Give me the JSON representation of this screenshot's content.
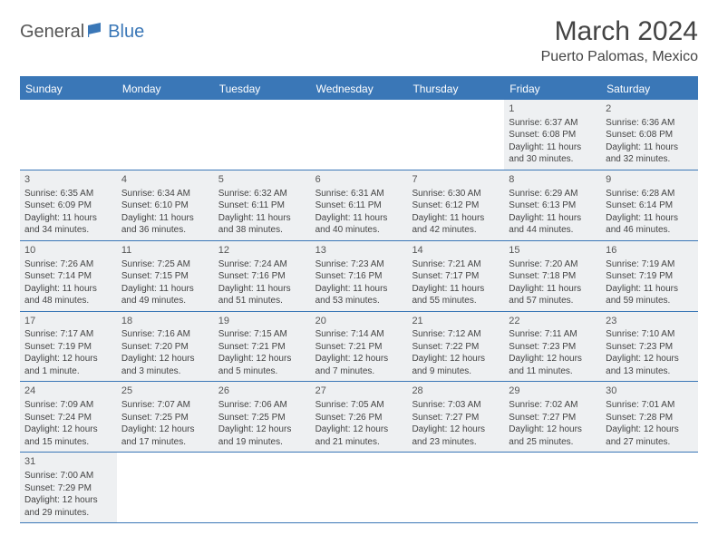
{
  "logo": {
    "part1": "General",
    "part2": "Blue"
  },
  "title": "March 2024",
  "location": "Puerto Palomas, Mexico",
  "colors": {
    "brand": "#3a77b7",
    "cell_bg": "#eef0f2",
    "text": "#444444"
  },
  "day_headers": [
    "Sunday",
    "Monday",
    "Tuesday",
    "Wednesday",
    "Thursday",
    "Friday",
    "Saturday"
  ],
  "weeks": [
    [
      null,
      null,
      null,
      null,
      null,
      {
        "n": "1",
        "sunrise": "Sunrise: 6:37 AM",
        "sunset": "Sunset: 6:08 PM",
        "daylight": "Daylight: 11 hours and 30 minutes."
      },
      {
        "n": "2",
        "sunrise": "Sunrise: 6:36 AM",
        "sunset": "Sunset: 6:08 PM",
        "daylight": "Daylight: 11 hours and 32 minutes."
      }
    ],
    [
      {
        "n": "3",
        "sunrise": "Sunrise: 6:35 AM",
        "sunset": "Sunset: 6:09 PM",
        "daylight": "Daylight: 11 hours and 34 minutes."
      },
      {
        "n": "4",
        "sunrise": "Sunrise: 6:34 AM",
        "sunset": "Sunset: 6:10 PM",
        "daylight": "Daylight: 11 hours and 36 minutes."
      },
      {
        "n": "5",
        "sunrise": "Sunrise: 6:32 AM",
        "sunset": "Sunset: 6:11 PM",
        "daylight": "Daylight: 11 hours and 38 minutes."
      },
      {
        "n": "6",
        "sunrise": "Sunrise: 6:31 AM",
        "sunset": "Sunset: 6:11 PM",
        "daylight": "Daylight: 11 hours and 40 minutes."
      },
      {
        "n": "7",
        "sunrise": "Sunrise: 6:30 AM",
        "sunset": "Sunset: 6:12 PM",
        "daylight": "Daylight: 11 hours and 42 minutes."
      },
      {
        "n": "8",
        "sunrise": "Sunrise: 6:29 AM",
        "sunset": "Sunset: 6:13 PM",
        "daylight": "Daylight: 11 hours and 44 minutes."
      },
      {
        "n": "9",
        "sunrise": "Sunrise: 6:28 AM",
        "sunset": "Sunset: 6:14 PM",
        "daylight": "Daylight: 11 hours and 46 minutes."
      }
    ],
    [
      {
        "n": "10",
        "sunrise": "Sunrise: 7:26 AM",
        "sunset": "Sunset: 7:14 PM",
        "daylight": "Daylight: 11 hours and 48 minutes."
      },
      {
        "n": "11",
        "sunrise": "Sunrise: 7:25 AM",
        "sunset": "Sunset: 7:15 PM",
        "daylight": "Daylight: 11 hours and 49 minutes."
      },
      {
        "n": "12",
        "sunrise": "Sunrise: 7:24 AM",
        "sunset": "Sunset: 7:16 PM",
        "daylight": "Daylight: 11 hours and 51 minutes."
      },
      {
        "n": "13",
        "sunrise": "Sunrise: 7:23 AM",
        "sunset": "Sunset: 7:16 PM",
        "daylight": "Daylight: 11 hours and 53 minutes."
      },
      {
        "n": "14",
        "sunrise": "Sunrise: 7:21 AM",
        "sunset": "Sunset: 7:17 PM",
        "daylight": "Daylight: 11 hours and 55 minutes."
      },
      {
        "n": "15",
        "sunrise": "Sunrise: 7:20 AM",
        "sunset": "Sunset: 7:18 PM",
        "daylight": "Daylight: 11 hours and 57 minutes."
      },
      {
        "n": "16",
        "sunrise": "Sunrise: 7:19 AM",
        "sunset": "Sunset: 7:19 PM",
        "daylight": "Daylight: 11 hours and 59 minutes."
      }
    ],
    [
      {
        "n": "17",
        "sunrise": "Sunrise: 7:17 AM",
        "sunset": "Sunset: 7:19 PM",
        "daylight": "Daylight: 12 hours and 1 minute."
      },
      {
        "n": "18",
        "sunrise": "Sunrise: 7:16 AM",
        "sunset": "Sunset: 7:20 PM",
        "daylight": "Daylight: 12 hours and 3 minutes."
      },
      {
        "n": "19",
        "sunrise": "Sunrise: 7:15 AM",
        "sunset": "Sunset: 7:21 PM",
        "daylight": "Daylight: 12 hours and 5 minutes."
      },
      {
        "n": "20",
        "sunrise": "Sunrise: 7:14 AM",
        "sunset": "Sunset: 7:21 PM",
        "daylight": "Daylight: 12 hours and 7 minutes."
      },
      {
        "n": "21",
        "sunrise": "Sunrise: 7:12 AM",
        "sunset": "Sunset: 7:22 PM",
        "daylight": "Daylight: 12 hours and 9 minutes."
      },
      {
        "n": "22",
        "sunrise": "Sunrise: 7:11 AM",
        "sunset": "Sunset: 7:23 PM",
        "daylight": "Daylight: 12 hours and 11 minutes."
      },
      {
        "n": "23",
        "sunrise": "Sunrise: 7:10 AM",
        "sunset": "Sunset: 7:23 PM",
        "daylight": "Daylight: 12 hours and 13 minutes."
      }
    ],
    [
      {
        "n": "24",
        "sunrise": "Sunrise: 7:09 AM",
        "sunset": "Sunset: 7:24 PM",
        "daylight": "Daylight: 12 hours and 15 minutes."
      },
      {
        "n": "25",
        "sunrise": "Sunrise: 7:07 AM",
        "sunset": "Sunset: 7:25 PM",
        "daylight": "Daylight: 12 hours and 17 minutes."
      },
      {
        "n": "26",
        "sunrise": "Sunrise: 7:06 AM",
        "sunset": "Sunset: 7:25 PM",
        "daylight": "Daylight: 12 hours and 19 minutes."
      },
      {
        "n": "27",
        "sunrise": "Sunrise: 7:05 AM",
        "sunset": "Sunset: 7:26 PM",
        "daylight": "Daylight: 12 hours and 21 minutes."
      },
      {
        "n": "28",
        "sunrise": "Sunrise: 7:03 AM",
        "sunset": "Sunset: 7:27 PM",
        "daylight": "Daylight: 12 hours and 23 minutes."
      },
      {
        "n": "29",
        "sunrise": "Sunrise: 7:02 AM",
        "sunset": "Sunset: 7:27 PM",
        "daylight": "Daylight: 12 hours and 25 minutes."
      },
      {
        "n": "30",
        "sunrise": "Sunrise: 7:01 AM",
        "sunset": "Sunset: 7:28 PM",
        "daylight": "Daylight: 12 hours and 27 minutes."
      }
    ],
    [
      {
        "n": "31",
        "sunrise": "Sunrise: 7:00 AM",
        "sunset": "Sunset: 7:29 PM",
        "daylight": "Daylight: 12 hours and 29 minutes."
      },
      null,
      null,
      null,
      null,
      null,
      null
    ]
  ]
}
